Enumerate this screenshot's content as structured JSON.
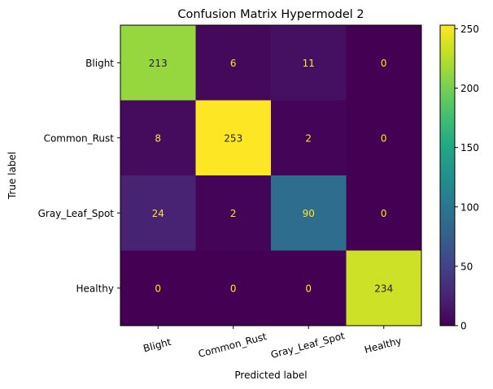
{
  "chart_data": {
    "type": "heatmap",
    "title": "Confusion Matrix Hypermodel 2",
    "xlabel": "Predicted label",
    "ylabel": "True label",
    "x_categories": [
      "Blight",
      "Common_Rust",
      "Gray_Leaf_Spot",
      "Healthy"
    ],
    "y_categories": [
      "Blight",
      "Common_Rust",
      "Gray_Leaf_Spot",
      "Healthy"
    ],
    "values": [
      [
        213,
        6,
        11,
        0
      ],
      [
        8,
        253,
        2,
        0
      ],
      [
        24,
        2,
        90,
        0
      ],
      [
        0,
        0,
        0,
        234
      ]
    ],
    "colormap": "viridis",
    "colorbar": {
      "range": [
        0,
        253
      ],
      "ticks": [
        0,
        50,
        100,
        150,
        200,
        250
      ]
    },
    "grid": false
  }
}
